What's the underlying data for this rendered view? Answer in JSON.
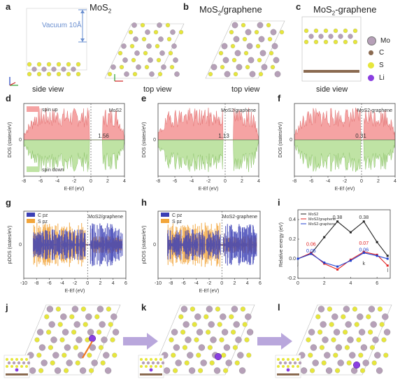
{
  "panel_labels": [
    "a",
    "b",
    "c",
    "d",
    "e",
    "f",
    "g",
    "h",
    "i",
    "j",
    "k",
    "l"
  ],
  "top": {
    "a_title": "MoS",
    "a_title_sub": "2",
    "b_title": "MoS",
    "b_title_rest": "/graphene",
    "c_title": "MoS",
    "c_title_rest": "-graphene",
    "vacuum": "Vacuum 10Å",
    "side_view": "side view",
    "top_view": "top view",
    "axis_c": "c",
    "axis_b": "b",
    "axis_a": "a"
  },
  "legend_atoms": [
    {
      "name": "Mo",
      "color": "#b6a0b8"
    },
    {
      "name": "C",
      "color": "#8a6a50"
    },
    {
      "name": "S",
      "color": "#e6e63c"
    },
    {
      "name": "Li",
      "color": "#8a3fe0"
    }
  ],
  "dos": {
    "ylabel": "DOS (states/eV)",
    "xlabel": "E-E",
    "xlabel_sub": "f",
    "xlabel_unit": " (eV)",
    "spin_up": "spin up",
    "spin_down": "spin down",
    "d_name": "MoS",
    "e_name": "MoS",
    "e_rest": "/graphene",
    "f_name": "MoS",
    "f_rest": "-graphene",
    "d_gap": "1.56",
    "e_gap": "1.13",
    "f_gap": "0.31",
    "d_ticks": [
      "-8",
      "-6",
      "-4",
      "-2",
      "0",
      "2",
      "4"
    ],
    "e_ticks": [
      "-8",
      "-6",
      "-4",
      "-2",
      "0",
      "2",
      "4"
    ],
    "f_ticks": [
      "-8",
      "-6",
      "-4",
      "-2",
      "0",
      "2",
      "4"
    ],
    "zero": "0"
  },
  "pdos": {
    "ylabel": "pDOS (states/eV)",
    "xlabel": "E-E",
    "xlabel_sub": "f",
    "xlabel_unit": " (eV)",
    "g_leg1": "C p",
    "g_leg2": "S p",
    "leg_sub": "z",
    "g_name": "MoS",
    "g_rest": "/graphene",
    "h_name": "MoS",
    "h_rest": "-graphene",
    "g_ticks": [
      "-10",
      "-8",
      "-6",
      "-4",
      "-2",
      "0",
      "2",
      "4",
      "6"
    ],
    "h_ticks": [
      "-10",
      "-8",
      "-6",
      "-4",
      "-2",
      "0",
      "2",
      "4",
      "6"
    ],
    "zero": "0"
  },
  "chart_data": {
    "type": "line",
    "title": "",
    "xlabel": "",
    "ylabel": "Relative energy (eV)",
    "ylim": [
      -0.2,
      0.5
    ],
    "xlim": [
      0,
      7
    ],
    "yticks": [
      "0.4",
      "0.2",
      "0.0",
      "-0.2"
    ],
    "xticks": [
      "0",
      "2",
      "4",
      "6"
    ],
    "legend": "top-left",
    "series": [
      {
        "name": "MoS2",
        "color": "#222222",
        "x": [
          0,
          1,
          2,
          3,
          4,
          5,
          6,
          6.8
        ],
        "y": [
          0.0,
          0.05,
          0.22,
          0.38,
          0.27,
          0.38,
          0.17,
          0.03
        ]
      },
      {
        "name": "MoS2/graphene",
        "color": "#e02020",
        "x": [
          0,
          1,
          2,
          3,
          4,
          5,
          6,
          6.8
        ],
        "y": [
          0.0,
          0.06,
          -0.05,
          -0.11,
          -0.01,
          0.07,
          0.04,
          -0.07
        ]
      },
      {
        "name": "MoS2-graphene",
        "color": "#2040d0",
        "x": [
          0,
          1,
          2,
          3,
          4,
          5,
          6,
          6.8
        ],
        "y": [
          0.0,
          0.05,
          -0.04,
          -0.08,
          -0.02,
          0.06,
          0.03,
          0.0
        ]
      }
    ],
    "annotations": [
      "0.38",
      "0.38",
      "0.06",
      "0.05",
      "0.07",
      "0.06",
      "j",
      "k",
      "l"
    ]
  }
}
